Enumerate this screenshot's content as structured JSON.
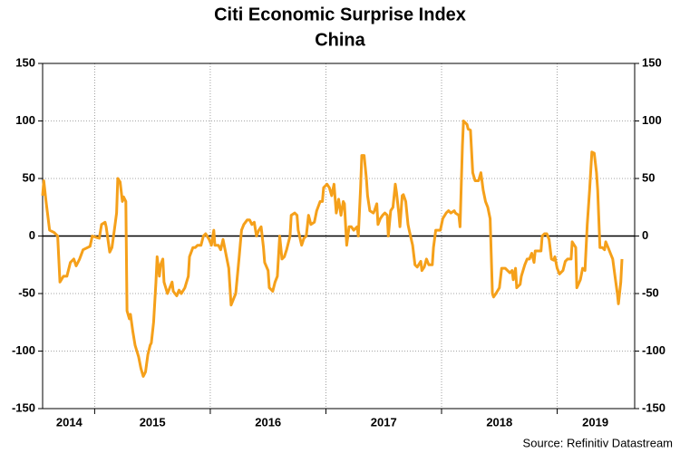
{
  "chart_data": {
    "type": "line",
    "title": "Citi Economic Surprise Index",
    "subtitle": "China",
    "source": "Source: Refinitiv Datastream",
    "color": "#f5a01a",
    "x": [
      2014.55,
      2014.56,
      2014.58,
      2014.61,
      2014.65,
      2014.68,
      2014.7,
      2014.73,
      2014.76,
      2014.79,
      2014.82,
      2014.84,
      2014.87,
      2014.9,
      2014.94,
      2014.96,
      2014.98,
      2015.01,
      2015.04,
      2015.06,
      2015.09,
      2015.1,
      2015.13,
      2015.15,
      2015.17,
      2015.19,
      2015.2,
      2015.22,
      2015.24,
      2015.25,
      2015.27,
      2015.28,
      2015.3,
      2015.31,
      2015.33,
      2015.35,
      2015.38,
      2015.4,
      2015.42,
      2015.44,
      2015.46,
      2015.48,
      2015.49,
      2015.51,
      2015.53,
      2015.54,
      2015.56,
      2015.57,
      2015.59,
      2015.6,
      2015.63,
      2015.65,
      2015.67,
      2015.68,
      2015.71,
      2015.73,
      2015.75,
      2015.78,
      2015.81,
      2015.82,
      2015.85,
      2015.87,
      2015.89,
      2015.92,
      2015.94,
      2015.96,
      2015.99,
      2016.01,
      2016.03,
      2016.04,
      2016.07,
      2016.09,
      2016.11,
      2016.14,
      2016.16,
      2016.18,
      2016.2,
      2016.22,
      2016.25,
      2016.27,
      2016.29,
      2016.32,
      2016.34,
      2016.36,
      2016.38,
      2016.4,
      2016.42,
      2016.44,
      2016.46,
      2016.47,
      2016.5,
      2016.51,
      2016.54,
      2016.56,
      2016.58,
      2016.6,
      2016.62,
      2016.64,
      2016.66,
      2016.69,
      2016.7,
      2016.73,
      2016.75,
      2016.76,
      2016.79,
      2016.81,
      2016.83,
      2016.85,
      2016.87,
      2016.9,
      2016.92,
      2016.95,
      2016.97,
      2016.98,
      2017.01,
      2017.03,
      2017.05,
      2017.07,
      2017.09,
      2017.11,
      2017.13,
      2017.15,
      2017.16,
      2017.18,
      2017.2,
      2017.22,
      2017.24,
      2017.27,
      2017.28,
      2017.3,
      2017.31,
      2017.33,
      2017.35,
      2017.36,
      2017.38,
      2017.41,
      2017.42,
      2017.44,
      2017.45,
      2017.47,
      2017.49,
      2017.51,
      2017.53,
      2017.54,
      2017.56,
      2017.58,
      2017.6,
      2017.61,
      2017.63,
      2017.64,
      2017.66,
      2017.67,
      2017.69,
      2017.71,
      2017.72,
      2017.75,
      2017.77,
      2017.79,
      2017.82,
      2017.83,
      2017.85,
      2017.87,
      2017.89,
      2017.92,
      2017.93,
      2017.95,
      2017.97,
      2017.99,
      2018.01,
      2018.04,
      2018.06,
      2018.08,
      2018.11,
      2018.12,
      2018.15,
      2018.16,
      2018.18,
      2018.19,
      2018.22,
      2018.23,
      2018.25,
      2018.27,
      2018.29,
      2018.32,
      2018.34,
      2018.36,
      2018.38,
      2018.4,
      2018.42,
      2018.44,
      2018.45,
      2018.47,
      2018.5,
      2018.52,
      2018.55,
      2018.57,
      2018.59,
      2018.61,
      2018.62,
      2018.64,
      2018.65,
      2018.68,
      2018.69,
      2018.72,
      2018.74,
      2018.76,
      2018.78,
      2018.8,
      2018.81,
      2018.84,
      2018.86,
      2018.87,
      2018.89,
      2018.91,
      2018.93,
      2018.95,
      2018.97,
      2018.98,
      2019.0,
      2019.02,
      2019.05,
      2019.07,
      2019.09,
      2019.12,
      2019.13,
      2019.16,
      2019.17,
      2019.2,
      2019.22,
      2019.24,
      2019.26,
      2019.28,
      2019.3,
      2019.32,
      2019.34,
      2019.35,
      2019.37,
      2019.39,
      2019.41,
      2019.42,
      2019.44,
      2019.46,
      2019.48,
      2019.5,
      2019.52,
      2019.53,
      2019.55,
      2019.56
    ],
    "values": [
      35,
      48,
      30,
      5,
      3,
      0,
      -40,
      -35,
      -35,
      -23,
      -20,
      -26,
      -20,
      -12,
      -10,
      -9,
      0,
      -1,
      -2,
      10,
      12,
      8,
      -14,
      -10,
      5,
      20,
      50,
      47,
      30,
      34,
      30,
      -65,
      -72,
      -68,
      -83,
      -95,
      -105,
      -115,
      -122,
      -118,
      -103,
      -95,
      -93,
      -75,
      -40,
      -18,
      -35,
      -25,
      -20,
      -40,
      -50,
      -45,
      -40,
      -48,
      -52,
      -47,
      -50,
      -45,
      -35,
      -18,
      -10,
      -10,
      -8,
      -8,
      0,
      2,
      -3,
      -8,
      5,
      -8,
      -8,
      -12,
      -3,
      -18,
      -28,
      -60,
      -55,
      -50,
      -18,
      5,
      10,
      14,
      14,
      10,
      12,
      0,
      5,
      8,
      -10,
      -23,
      -30,
      -45,
      -48,
      -40,
      -35,
      0,
      -20,
      -18,
      -12,
      0,
      18,
      20,
      18,
      5,
      -8,
      -2,
      0,
      18,
      10,
      12,
      22,
      30,
      30,
      42,
      45,
      42,
      35,
      45,
      20,
      32,
      18,
      30,
      28,
      -8,
      8,
      8,
      5,
      8,
      0,
      42,
      70,
      70,
      50,
      35,
      22,
      20,
      22,
      28,
      10,
      15,
      18,
      20,
      18,
      0,
      22,
      25,
      45,
      38,
      20,
      8,
      35,
      36,
      30,
      10,
      5,
      -8,
      -25,
      -27,
      -22,
      -30,
      -27,
      -20,
      -25,
      -25,
      -10,
      5,
      5,
      5,
      15,
      20,
      22,
      20,
      22,
      20,
      18,
      8,
      78,
      100,
      97,
      93,
      92,
      55,
      48,
      48,
      55,
      40,
      30,
      25,
      15,
      -50,
      -53,
      -50,
      -45,
      -28,
      -28,
      -30,
      -32,
      -30,
      -38,
      -28,
      -45,
      -42,
      -35,
      -25,
      -20,
      -20,
      -15,
      -23,
      -13,
      -13,
      -13,
      0,
      2,
      2,
      -3,
      -20,
      -21,
      -18,
      -28,
      -33,
      -30,
      -22,
      -20,
      -20,
      -5,
      -10,
      -45,
      -38,
      -28,
      -30,
      10,
      40,
      73,
      72,
      55,
      40,
      -10,
      -10,
      -12,
      -5,
      -10,
      -15,
      -20,
      -35,
      -50,
      -59,
      -40,
      -20
    ],
    "xlim": [
      2014.55,
      2019.67
    ],
    "xticks": [
      {
        "value": 2014.78,
        "label": "2014"
      },
      {
        "value": 2015.5,
        "label": "2015"
      },
      {
        "value": 2016.5,
        "label": "2016"
      },
      {
        "value": 2017.5,
        "label": "2017"
      },
      {
        "value": 2018.5,
        "label": "2018"
      },
      {
        "value": 2019.33,
        "label": "2019"
      }
    ],
    "xgrid": [
      2015,
      2016,
      2017,
      2018,
      2019
    ],
    "ylim": [
      -150,
      150
    ],
    "yticks": [
      -150,
      -100,
      -50,
      0,
      50,
      100,
      150
    ],
    "grid": true
  }
}
